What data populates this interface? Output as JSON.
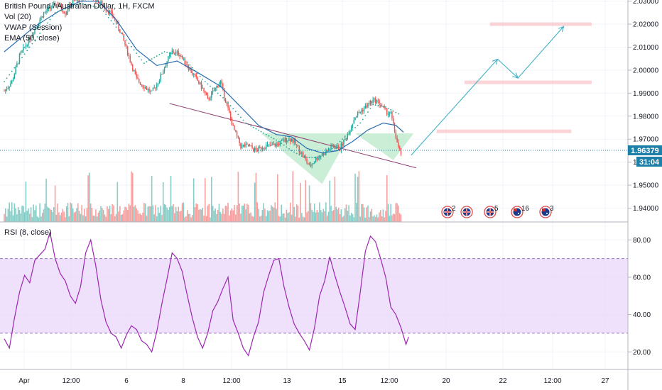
{
  "header": {
    "title": "British Pound / Australian Dollar, 1H, FXCM",
    "indicators": [
      "Vol (20)",
      "VWAP (Session)",
      "EMA (50, close)"
    ]
  },
  "price_axis": {
    "current_price": "1.96379",
    "countdown": "31:04"
  },
  "rsi_pane": {
    "title": "RSI (8, close)"
  },
  "events": [
    {
      "flag": "uk",
      "count": "2"
    },
    {
      "flag": "uk",
      "count": ""
    },
    {
      "flag": "uk",
      "count": "5"
    },
    {
      "flag": "au",
      "count": "16"
    },
    {
      "flag": "au",
      "count": "3"
    }
  ],
  "colors": {
    "up": "#26a69a",
    "down": "#ef5350",
    "ema": "#2a6db0",
    "vwap": "#9c27b0",
    "rsi": "#9c27b0",
    "rsi_band": "#e9d7fb",
    "arrow": "#3fb1c5",
    "zone": "#f9c9cc",
    "triangle": "#b9e8c9",
    "trendline": "#8e3f6f",
    "price_badge": "#1d80a8"
  },
  "chart_data": [
    {
      "type": "candlestick",
      "title": "British Pound / Australian Dollar, 1H, FXCM",
      "y_ticks": [
        "2.03000",
        "2.02000",
        "2.01000",
        "2.00000",
        "1.99000",
        "1.98000",
        "1.97000",
        "1.96000",
        "1.95000",
        "1.94000"
      ],
      "ylim": [
        1.934,
        2.0305
      ],
      "x_ticks": [
        "Apr",
        "12:00",
        "6",
        "8",
        "12:00",
        "13",
        "15",
        "12:00",
        "20",
        "22",
        "12:00",
        "27"
      ],
      "close_path": [
        [
          0,
          1.991
        ],
        [
          6,
          1.995
        ],
        [
          12,
          2.006
        ],
        [
          18,
          2.012
        ],
        [
          24,
          2.018
        ],
        [
          30,
          2.024
        ],
        [
          36,
          2.027
        ],
        [
          42,
          2.029
        ],
        [
          48,
          2.025
        ],
        [
          54,
          2.03
        ],
        [
          60,
          2.031
        ],
        [
          66,
          2.032
        ],
        [
          72,
          2.031
        ],
        [
          80,
          2.027
        ],
        [
          86,
          2.023
        ],
        [
          92,
          2.016
        ],
        [
          98,
          2.006
        ],
        [
          104,
          1.996
        ],
        [
          110,
          1.993
        ],
        [
          116,
          1.99
        ],
        [
          122,
          1.996
        ],
        [
          128,
          2.004
        ],
        [
          132,
          2.008
        ],
        [
          138,
          2.007
        ],
        [
          144,
          2.002
        ],
        [
          150,
          1.997
        ],
        [
          156,
          1.992
        ],
        [
          160,
          1.987
        ],
        [
          166,
          1.992
        ],
        [
          170,
          1.995
        ],
        [
          174,
          1.987
        ],
        [
          180,
          1.975
        ],
        [
          186,
          1.967
        ],
        [
          192,
          1.967
        ],
        [
          198,
          1.965
        ],
        [
          204,
          1.967
        ],
        [
          210,
          1.967
        ],
        [
          216,
          1.968
        ],
        [
          222,
          1.97
        ],
        [
          226,
          1.97
        ],
        [
          230,
          1.967
        ],
        [
          236,
          1.962
        ],
        [
          240,
          1.958
        ],
        [
          246,
          1.962
        ],
        [
          252,
          1.964
        ],
        [
          258,
          1.967
        ],
        [
          264,
          1.966
        ],
        [
          270,
          1.972
        ],
        [
          276,
          1.98
        ],
        [
          282,
          1.983
        ],
        [
          288,
          1.986
        ],
        [
          292,
          1.987
        ],
        [
          296,
          1.985
        ],
        [
          300,
          1.982
        ],
        [
          304,
          1.981
        ],
        [
          306,
          1.976
        ],
        [
          308,
          1.971
        ],
        [
          310,
          1.966
        ],
        [
          312,
          1.964
        ]
      ],
      "vwap_path": [
        [
          0,
          1.995
        ],
        [
          40,
          2.025
        ],
        [
          60,
          2.029
        ],
        [
          76,
          2.027
        ],
        [
          92,
          2.016
        ],
        [
          110,
          2.003
        ],
        [
          126,
          2.008
        ],
        [
          140,
          2.006
        ],
        [
          156,
          1.996
        ],
        [
          174,
          1.987
        ],
        [
          190,
          1.977
        ],
        [
          206,
          1.972
        ],
        [
          216,
          1.969
        ],
        [
          226,
          1.965
        ],
        [
          236,
          1.962
        ],
        [
          246,
          1.962
        ],
        [
          258,
          1.966
        ],
        [
          270,
          1.972
        ],
        [
          280,
          1.977
        ],
        [
          290,
          1.985
        ],
        [
          300,
          1.984
        ],
        [
          310,
          1.981
        ]
      ],
      "ema_path": [
        [
          0,
          2.008
        ],
        [
          24,
          2.019
        ],
        [
          44,
          2.026
        ],
        [
          60,
          2.03
        ],
        [
          74,
          2.03
        ],
        [
          88,
          2.022
        ],
        [
          104,
          2.009
        ],
        [
          120,
          2.002
        ],
        [
          136,
          2.004
        ],
        [
          152,
          1.999
        ],
        [
          170,
          1.993
        ],
        [
          186,
          1.984
        ],
        [
          200,
          1.976
        ],
        [
          214,
          1.972
        ],
        [
          226,
          1.971
        ],
        [
          238,
          1.966
        ],
        [
          250,
          1.964
        ],
        [
          262,
          1.965
        ],
        [
          274,
          1.969
        ],
        [
          286,
          1.974
        ],
        [
          298,
          1.977
        ],
        [
          308,
          1.976
        ],
        [
          314,
          1.973
        ]
      ],
      "drawings": {
        "trendline": [
          [
            130,
            1.9855
          ],
          [
            324,
            1.9575
          ]
        ],
        "support_zones": [
          {
            "x0": 382,
            "x1": 462,
            "price": 2.02
          },
          {
            "x0": 362,
            "x1": 462,
            "price": 1.9947
          },
          {
            "x0": 340,
            "x1": 446,
            "price": 1.9734
          }
        ],
        "forecast_arrow": [
          [
            320,
            1.963
          ],
          [
            388,
            2.0048
          ],
          [
            404,
            1.9966
          ],
          [
            440,
            2.019
          ]
        ],
        "triangles": [
          [
            [
              202,
              1.9725
            ],
            [
              272,
              1.9725
            ],
            [
              250,
              1.9505
            ]
          ],
          [
            [
              276,
              1.9725
            ],
            [
              322,
              1.9725
            ],
            [
              306,
              1.9609
            ]
          ]
        ]
      }
    },
    {
      "type": "bar",
      "title": "Vol (20)",
      "note": "volume histogram under price, colored by candle direction"
    },
    {
      "type": "line",
      "title": "RSI (8, close)",
      "y_ticks": [
        "80.00",
        "60.00",
        "40.00",
        "20.00"
      ],
      "ylim": [
        10.6,
        89.6
      ],
      "band": [
        30,
        70
      ],
      "values": [
        [
          0,
          27
        ],
        [
          4,
          22
        ],
        [
          8,
          38
        ],
        [
          12,
          52
        ],
        [
          16,
          61
        ],
        [
          20,
          57
        ],
        [
          24,
          69
        ],
        [
          28,
          72
        ],
        [
          32,
          75
        ],
        [
          36,
          84
        ],
        [
          40,
          70
        ],
        [
          44,
          62
        ],
        [
          48,
          58
        ],
        [
          52,
          50
        ],
        [
          56,
          46
        ],
        [
          60,
          55
        ],
        [
          64,
          73
        ],
        [
          68,
          80
        ],
        [
          72,
          66
        ],
        [
          76,
          48
        ],
        [
          80,
          36
        ],
        [
          84,
          30
        ],
        [
          88,
          28
        ],
        [
          92,
          22
        ],
        [
          96,
          29
        ],
        [
          100,
          34
        ],
        [
          104,
          32
        ],
        [
          108,
          26
        ],
        [
          112,
          24
        ],
        [
          116,
          20
        ],
        [
          120,
          31
        ],
        [
          124,
          46
        ],
        [
          128,
          59
        ],
        [
          132,
          73
        ],
        [
          136,
          70
        ],
        [
          140,
          63
        ],
        [
          144,
          50
        ],
        [
          148,
          38
        ],
        [
          152,
          28
        ],
        [
          156,
          22
        ],
        [
          160,
          30
        ],
        [
          164,
          42
        ],
        [
          168,
          47
        ],
        [
          172,
          54
        ],
        [
          176,
          60
        ],
        [
          180,
          37
        ],
        [
          184,
          30
        ],
        [
          188,
          22
        ],
        [
          192,
          18
        ],
        [
          196,
          28
        ],
        [
          200,
          36
        ],
        [
          204,
          52
        ],
        [
          208,
          61
        ],
        [
          212,
          69
        ],
        [
          216,
          70
        ],
        [
          220,
          55
        ],
        [
          224,
          44
        ],
        [
          228,
          35
        ],
        [
          232,
          30
        ],
        [
          236,
          26
        ],
        [
          240,
          21
        ],
        [
          244,
          33
        ],
        [
          248,
          50
        ],
        [
          252,
          58
        ],
        [
          256,
          71
        ],
        [
          260,
          61
        ],
        [
          264,
          52
        ],
        [
          268,
          44
        ],
        [
          272,
          35
        ],
        [
          276,
          32
        ],
        [
          280,
          52
        ],
        [
          284,
          74
        ],
        [
          288,
          82
        ],
        [
          292,
          79
        ],
        [
          296,
          70
        ],
        [
          300,
          60
        ],
        [
          304,
          44
        ],
        [
          308,
          40
        ],
        [
          312,
          33
        ],
        [
          316,
          24
        ],
        [
          318,
          28
        ]
      ]
    }
  ]
}
